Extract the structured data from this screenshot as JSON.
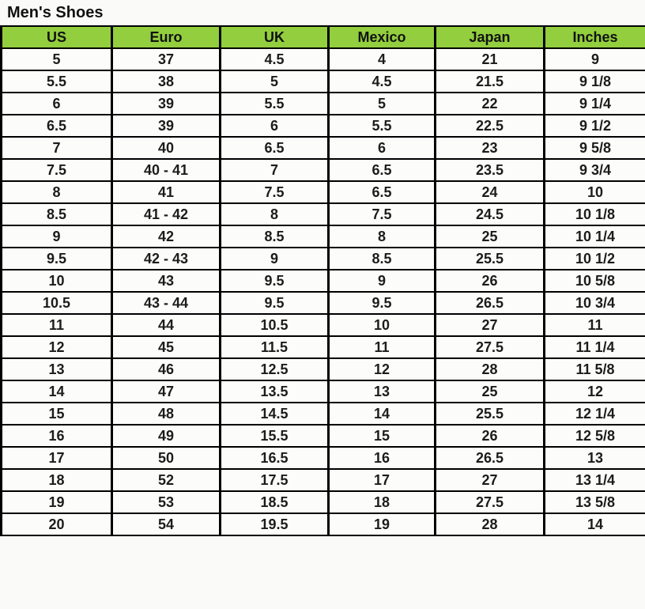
{
  "title": "Men's Shoes",
  "chart_data": {
    "type": "table",
    "title": "Men's Shoes",
    "columns": [
      "US",
      "Euro",
      "UK",
      "Mexico",
      "Japan",
      "Inches"
    ],
    "rows": [
      [
        "5",
        "37",
        "4.5",
        "4",
        "21",
        "9"
      ],
      [
        "5.5",
        "38",
        "5",
        "4.5",
        "21.5",
        "9 1/8"
      ],
      [
        "6",
        "39",
        "5.5",
        "5",
        "22",
        "9 1/4"
      ],
      [
        "6.5",
        "39",
        "6",
        "5.5",
        "22.5",
        "9 1/2"
      ],
      [
        "7",
        "40",
        "6.5",
        "6",
        "23",
        "9 5/8"
      ],
      [
        "7.5",
        "40 - 41",
        "7",
        "6.5",
        "23.5",
        "9 3/4"
      ],
      [
        "8",
        "41",
        "7.5",
        "6.5",
        "24",
        "10"
      ],
      [
        "8.5",
        "41 - 42",
        "8",
        "7.5",
        "24.5",
        "10 1/8"
      ],
      [
        "9",
        "42",
        "8.5",
        "8",
        "25",
        "10 1/4"
      ],
      [
        "9.5",
        "42 - 43",
        "9",
        "8.5",
        "25.5",
        "10 1/2"
      ],
      [
        "10",
        "43",
        "9.5",
        "9",
        "26",
        "10 5/8"
      ],
      [
        "10.5",
        "43 - 44",
        "9.5",
        "9.5",
        "26.5",
        "10 3/4"
      ],
      [
        "11",
        "44",
        "10.5",
        "10",
        "27",
        "11"
      ],
      [
        "12",
        "45",
        "11.5",
        "11",
        "27.5",
        "11 1/4"
      ],
      [
        "13",
        "46",
        "12.5",
        "12",
        "28",
        "11 5/8"
      ],
      [
        "14",
        "47",
        "13.5",
        "13",
        "25",
        "12"
      ],
      [
        "15",
        "48",
        "14.5",
        "14",
        "25.5",
        "12 1/4"
      ],
      [
        "16",
        "49",
        "15.5",
        "15",
        "26",
        "12 5/8"
      ],
      [
        "17",
        "50",
        "16.5",
        "16",
        "26.5",
        "13"
      ],
      [
        "18",
        "52",
        "17.5",
        "17",
        "27",
        "13 1/4"
      ],
      [
        "19",
        "53",
        "18.5",
        "18",
        "27.5",
        "13 5/8"
      ],
      [
        "20",
        "54",
        "19.5",
        "19",
        "28",
        "14"
      ]
    ]
  },
  "colors": {
    "header_bg": "#92ce3d",
    "border": "#000000",
    "text": "#1c1c1c",
    "cell_bg": "#fcfcfa",
    "page_bg": "#fafaf8"
  }
}
